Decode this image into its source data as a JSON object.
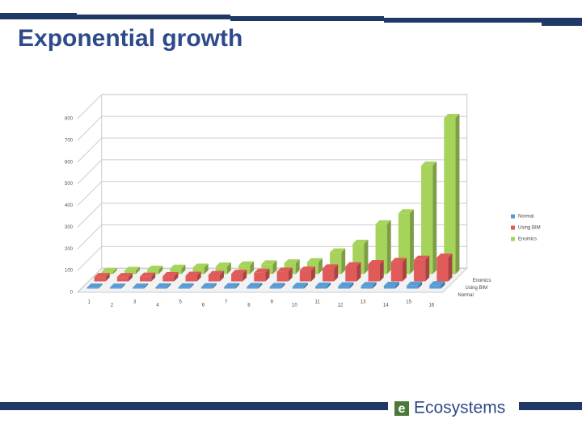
{
  "header": {
    "title": "Exponential growth"
  },
  "footer": {
    "logo_letter": "e",
    "logo_text": "Ecosystems"
  },
  "chart_data": {
    "type": "bar3d",
    "categories": [
      "1",
      "2",
      "3",
      "4",
      "5",
      "6",
      "7",
      "8",
      "9",
      "10",
      "11",
      "12",
      "13",
      "14",
      "15",
      "16"
    ],
    "series": [
      {
        "name": "Normal",
        "color": "#5b9bd5",
        "values": [
          5,
          5,
          5,
          6,
          6,
          7,
          7,
          8,
          8,
          9,
          10,
          11,
          12,
          13,
          14,
          16
        ]
      },
      {
        "name": "Using BIM",
        "color": "#e05a5a",
        "values": [
          20,
          20,
          22,
          24,
          26,
          30,
          35,
          40,
          45,
          50,
          60,
          70,
          80,
          90,
          100,
          110
        ]
      },
      {
        "name": "Enomics",
        "color": "#a6d35a",
        "values": [
          10,
          15,
          20,
          25,
          30,
          35,
          40,
          45,
          50,
          55,
          100,
          140,
          230,
          280,
          500,
          720
        ]
      }
    ],
    "ylim": [
      0,
      800
    ],
    "yticks": [
      0,
      100,
      200,
      300,
      400,
      500,
      600,
      700,
      800
    ],
    "grid": true,
    "legend": "right"
  }
}
